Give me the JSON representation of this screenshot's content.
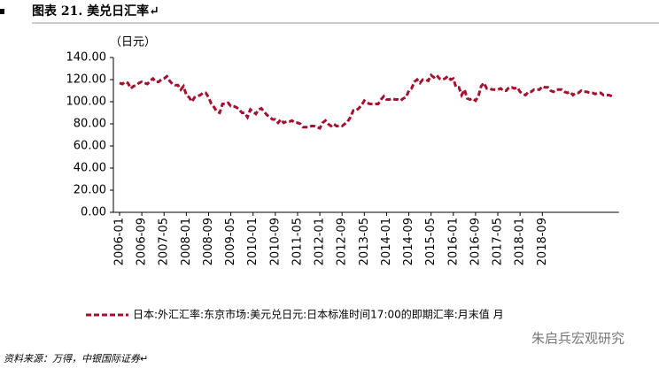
{
  "chart_data": {
    "type": "line",
    "title": "图表 21. 美兑日汇率↵",
    "y_label": "（日元）",
    "source": "资料来源：万得，中银国际证券↵",
    "watermark": "朱启兵宏观研究",
    "categories": [
      "2006-01",
      null,
      null,
      null,
      null,
      null,
      null,
      null,
      "2006-09",
      null,
      null,
      null,
      null,
      null,
      null,
      null,
      "2007-05",
      null,
      null,
      null,
      null,
      null,
      null,
      null,
      "2008-01",
      null,
      null,
      null,
      null,
      null,
      null,
      null,
      "2008-09",
      null,
      null,
      null,
      null,
      null,
      null,
      null,
      "2009-05",
      null,
      null,
      null,
      null,
      null,
      null,
      null,
      "2010-01",
      null,
      null,
      null,
      null,
      null,
      null,
      null,
      "2010-09",
      null,
      null,
      null,
      null,
      null,
      null,
      null,
      "2011-05",
      null,
      null,
      null,
      null,
      null,
      null,
      null,
      "2012-01",
      null,
      null,
      null,
      null,
      null,
      null,
      null,
      "2012-09",
      null,
      null,
      null,
      null,
      null,
      null,
      null,
      "2013-05",
      null,
      null,
      null,
      null,
      null,
      null,
      null,
      "2014-01",
      null,
      null,
      null,
      null,
      null,
      null,
      null,
      "2014-09",
      null,
      null,
      null,
      null,
      null,
      null,
      null,
      "2015-05",
      null,
      null,
      null,
      null,
      null,
      null,
      null,
      "2016-01",
      null,
      null,
      null,
      null,
      null,
      null,
      null,
      "2016-09",
      null,
      null,
      null,
      null,
      null,
      null,
      null,
      "2017-05",
      null,
      null,
      null,
      null,
      null,
      null,
      null,
      "2018-01",
      null,
      null,
      null,
      null,
      null,
      null,
      null,
      "2018-09",
      null,
      null,
      null,
      null,
      null,
      null,
      null,
      null,
      null,
      null,
      null,
      null,
      null,
      null,
      null,
      null,
      null,
      null,
      null,
      null,
      null,
      null,
      null,
      null,
      null
    ],
    "series": [
      {
        "name": "日本:外汇汇率:东京市场:美元兑日元:日本标准时间17:00的即期汇率:月末值  月",
        "color": "#a3112e",
        "values": [
          117,
          116,
          118,
          117,
          112,
          114,
          115,
          117,
          118,
          117,
          116,
          119,
          121,
          118,
          118,
          120,
          121,
          123,
          119,
          116,
          115,
          115,
          111,
          114,
          106,
          104,
          100,
          104,
          105,
          106,
          108,
          108,
          104,
          98,
          95,
          91,
          90,
          98,
          98,
          99,
          96,
          96,
          95,
          93,
          90,
          90,
          86,
          93,
          91,
          89,
          93,
          94,
          91,
          88,
          86,
          84,
          84,
          81,
          84,
          81,
          82,
          82,
          83,
          81,
          81,
          80,
          77,
          77,
          77,
          78,
          78,
          77,
          76,
          81,
          83,
          80,
          78,
          80,
          78,
          78,
          78,
          80,
          82,
          86,
          92,
          92,
          94,
          97,
          101,
          99,
          98,
          98,
          98,
          98,
          102,
          105,
          102,
          102,
          103,
          102,
          102,
          101,
          103,
          104,
          110,
          112,
          118,
          120,
          117,
          120,
          120,
          119,
          124,
          122,
          124,
          121,
          120,
          121,
          123,
          120,
          121,
          113,
          113,
          106,
          111,
          103,
          102,
          103,
          101,
          105,
          114,
          117,
          112,
          112,
          111,
          111,
          111,
          112,
          110,
          110,
          113,
          113,
          112,
          113,
          109,
          107,
          106,
          109,
          109,
          111,
          111,
          111,
          114,
          113,
          113,
          110,
          109,
          111,
          111,
          111,
          109,
          108,
          109,
          106,
          108,
          108,
          110,
          109,
          109,
          108,
          108,
          107,
          108,
          108,
          106,
          106,
          106,
          105
        ]
      }
    ],
    "ylim": [
      0,
      140
    ],
    "yticks": [
      {
        "value": 0,
        "label": "0.00"
      },
      {
        "value": 20,
        "label": "20.00"
      },
      {
        "value": 40,
        "label": "40.00"
      },
      {
        "value": 60,
        "label": "60.00"
      },
      {
        "value": 80,
        "label": "80.00"
      },
      {
        "value": 100,
        "label": "100.00"
      },
      {
        "value": 120,
        "label": "120.00"
      },
      {
        "value": 140,
        "label": "140.00"
      }
    ],
    "line_style": "dashed",
    "legend": "bottom"
  }
}
